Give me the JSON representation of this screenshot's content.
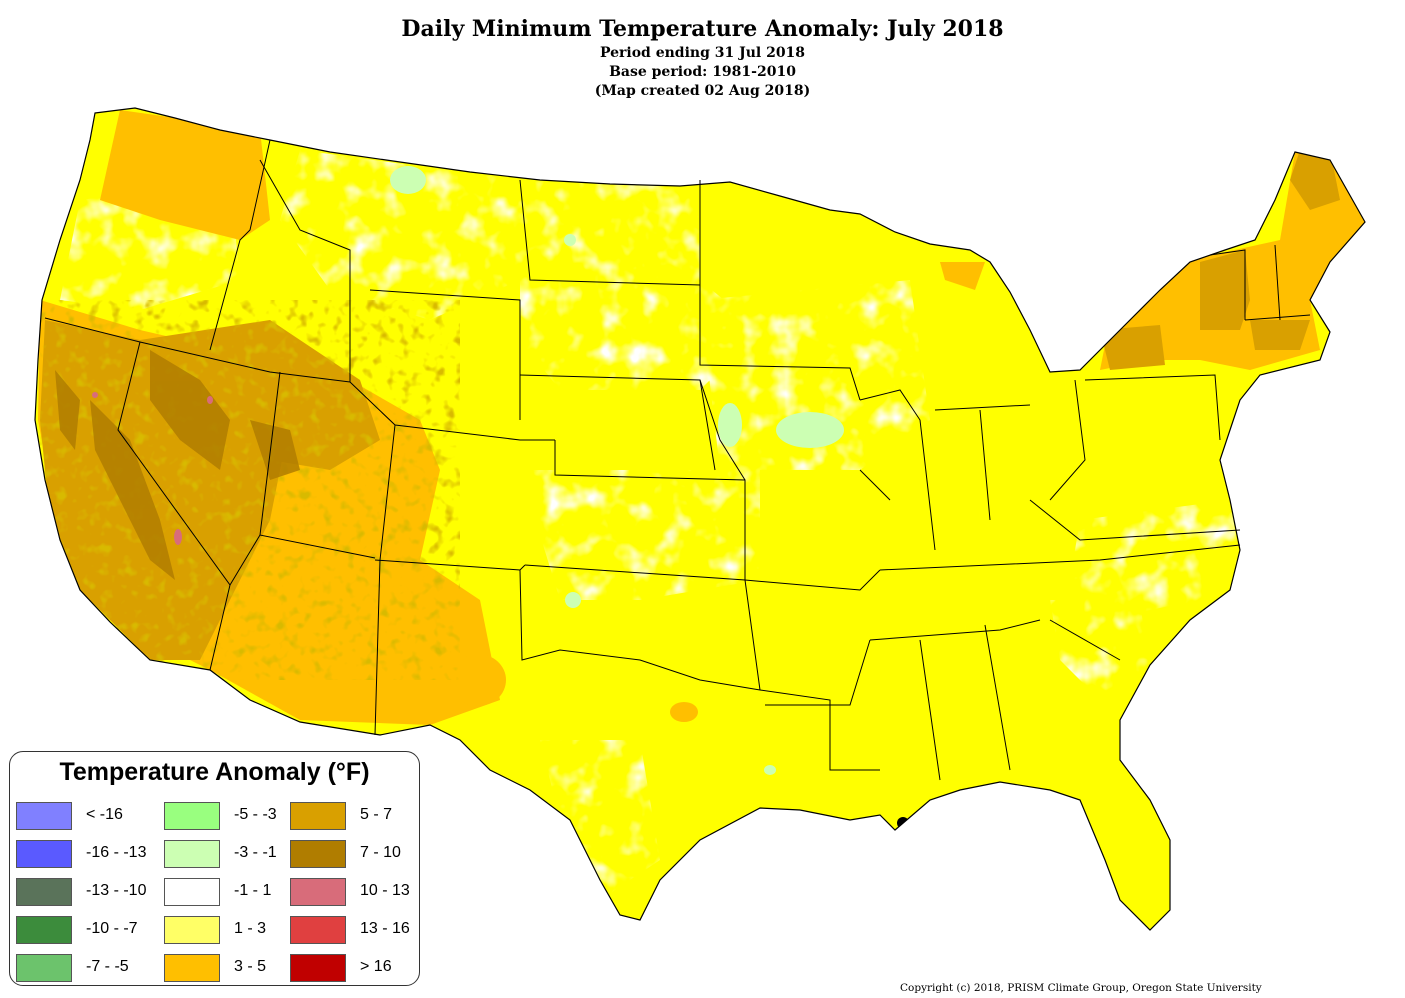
{
  "header": {
    "title": "Daily Minimum Temperature Anomaly: July 2018",
    "period": "Period ending 31 Jul 2018",
    "base_period": "Base period: 1981-2010",
    "created": "(Map created 02 Aug 2018)"
  },
  "legend": {
    "title": "Temperature Anomaly (°F)",
    "items": [
      {
        "label": "< -16",
        "color": "#8080ff"
      },
      {
        "label": "-16 - -13",
        "color": "#5a5aff"
      },
      {
        "label": "-13 - -10",
        "color": "#5a735a"
      },
      {
        "label": "-10 - -7",
        "color": "#3c8c3c"
      },
      {
        "label": "-7 - -5",
        "color": "#6cc36c"
      },
      {
        "label": "-5 - -3",
        "color": "#99ff7f"
      },
      {
        "label": "-3 - -1",
        "color": "#ccffb3"
      },
      {
        "label": "-1 - 1",
        "color": "#ffffff"
      },
      {
        "label": "1 - 3",
        "color": "#ffff66"
      },
      {
        "label": "3 - 5",
        "color": "#ffbf00"
      },
      {
        "label": "5 - 7",
        "color": "#d9a000"
      },
      {
        "label": "7 - 10",
        "color": "#b07d00"
      },
      {
        "label": "10 - 13",
        "color": "#d86c7a"
      },
      {
        "label": "13 - 16",
        "color": "#e04040"
      },
      {
        "label": "> 16",
        "color": "#c00000"
      }
    ]
  },
  "footer": {
    "copyright": "Copyright (c) 2018, PRISM Climate Group, Oregon State University"
  }
}
